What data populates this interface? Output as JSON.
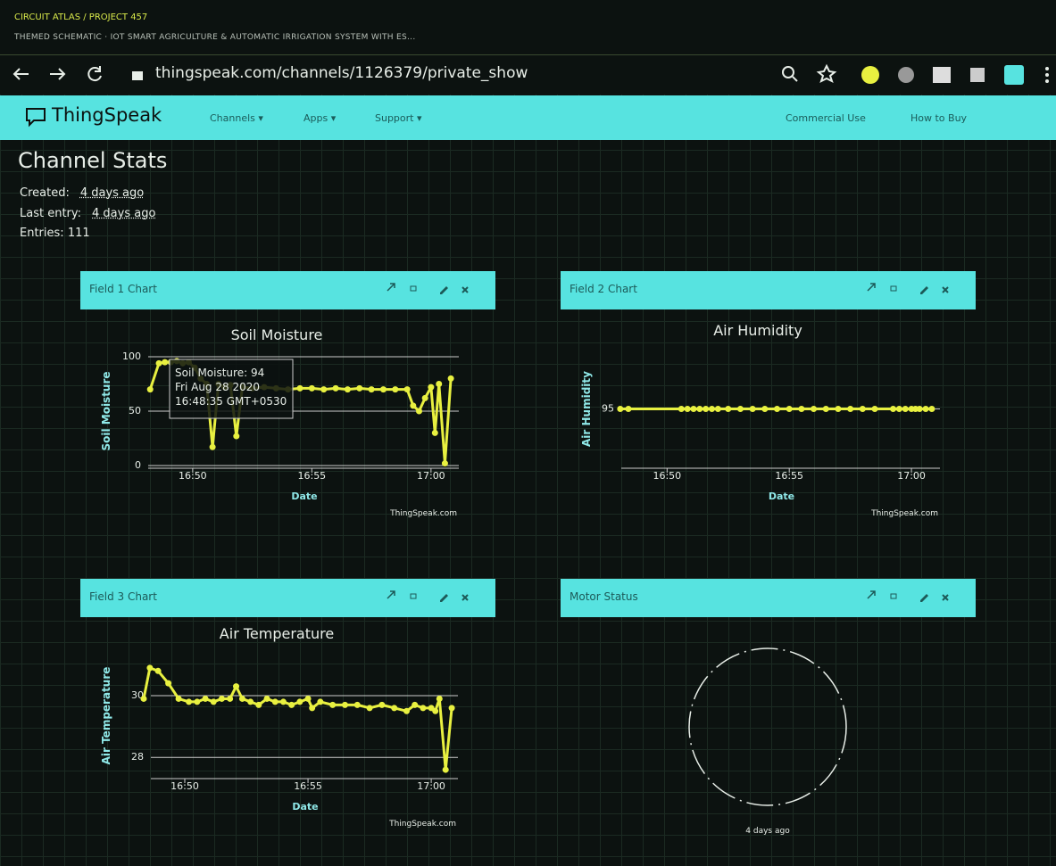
{
  "header": {
    "breadcrumb": "CIRCUIT ATLAS / PROJECT 457",
    "subtitle": "THEMED SCHEMATIC · IOT SMART AGRICULTURE & AUTOMATIC IRRIGATION SYSTEM WITH ES..."
  },
  "browser": {
    "url": "thingspeak.com/channels/1126379/private_show"
  },
  "nav": {
    "brand": "ThingSpeak",
    "menu": [
      "Channels ▾",
      "Apps ▾",
      "Support ▾"
    ],
    "right": [
      "Commercial Use",
      "How to Buy"
    ]
  },
  "stats": {
    "title": "Channel Stats",
    "created_label": "Created:",
    "created": "4 days ago",
    "last_label": "Last entry:",
    "last": "4 days ago",
    "entries_label": "Entries:",
    "entries": 111
  },
  "panels": [
    {
      "header": "Field 1 Chart",
      "chart": {
        "type": "line",
        "title": "Soil Moisture",
        "y_label": "Soil Moisture",
        "x_label": "Date",
        "credit": "ThingSpeak.com",
        "color": "#e8f040",
        "x": [
          "16:48:13",
          "16:48:35",
          "16:48:50",
          "16:49:05",
          "16:49:20",
          "16:49:35",
          "16:49:50",
          "16:50:05",
          "16:50:20",
          "16:50:35",
          "16:50:50",
          "16:51:05",
          "16:51:20",
          "16:51:35",
          "16:51:50",
          "16:52:05",
          "16:52:30",
          "16:53:00",
          "16:53:30",
          "16:54:00",
          "16:54:30",
          "16:55:00",
          "16:55:30",
          "16:56:00",
          "16:56:30",
          "16:57:00",
          "16:57:30",
          "16:58:00",
          "16:58:30",
          "16:59:00",
          "16:59:15",
          "16:59:30",
          "16:59:45",
          "17:00:00",
          "17:00:10",
          "17:00:20",
          "17:00:35",
          "17:00:50"
        ],
        "values": [
          70,
          94,
          95,
          95,
          96,
          94,
          95,
          90,
          80,
          75,
          17,
          75,
          72,
          74,
          27,
          72,
          71,
          72,
          71,
          70,
          71,
          71,
          70,
          71,
          70,
          71,
          70,
          70,
          70,
          70,
          55,
          50,
          62,
          72,
          30,
          75,
          2,
          80
        ],
        "xlim": [
          "16:47:50",
          "17:01:10"
        ],
        "xticks": [
          "16:50",
          "16:55",
          "17:00"
        ],
        "ylim": [
          0,
          100
        ],
        "yticks": [
          0,
          50,
          100
        ],
        "tooltip": [
          "Soil Moisture: 94",
          "Fri Aug 28 2020",
          "16:48:35 GMT+0530"
        ]
      }
    },
    {
      "header": "Field 2 Chart",
      "chart": {
        "type": "line",
        "title": "Air Humidity",
        "y_label": "Air Humidity",
        "x_label": "Date",
        "credit": "ThingSpeak.com",
        "color": "#e8f040",
        "x": [
          "16:48:05",
          "16:48:25",
          "16:50:35",
          "16:50:50",
          "16:51:05",
          "16:51:20",
          "16:51:35",
          "16:51:50",
          "16:52:05",
          "16:52:30",
          "16:53:00",
          "16:53:30",
          "16:54:00",
          "16:54:30",
          "16:55:00",
          "16:55:30",
          "16:56:00",
          "16:56:30",
          "16:57:00",
          "16:57:30",
          "16:58:00",
          "16:58:30",
          "16:59:15",
          "16:59:30",
          "16:59:45",
          "17:00:00",
          "17:00:10",
          "17:00:20",
          "17:00:35",
          "17:00:50"
        ],
        "values": [
          95,
          95,
          95,
          95,
          95,
          95,
          95,
          95,
          95,
          95,
          95,
          95,
          95,
          95,
          95,
          95,
          95,
          95,
          95,
          95,
          95,
          95,
          95,
          95,
          95,
          95,
          95,
          95,
          95,
          95
        ],
        "xlim": [
          "16:47:50",
          "17:01:10"
        ],
        "xticks": [
          "16:50",
          "16:55",
          "17:00"
        ],
        "ylim": [
          90,
          100
        ],
        "yticks": [
          95
        ]
      }
    },
    {
      "header": "Field 3 Chart",
      "chart": {
        "type": "line",
        "title": "Air Temperature",
        "y_label": "Air Temperature",
        "x_label": "Date",
        "credit": "ThingSpeak.com",
        "color": "#e8f040",
        "x": [
          "16:48:20",
          "16:48:35",
          "16:48:55",
          "16:49:20",
          "16:49:45",
          "16:50:10",
          "16:50:30",
          "16:50:50",
          "16:51:10",
          "16:51:30",
          "16:51:50",
          "16:52:05",
          "16:52:20",
          "16:52:40",
          "16:53:00",
          "16:53:20",
          "16:53:40",
          "16:54:00",
          "16:54:20",
          "16:54:40",
          "16:55:00",
          "16:55:10",
          "16:55:30",
          "16:56:00",
          "16:56:30",
          "16:57:00",
          "16:57:30",
          "16:58:00",
          "16:58:30",
          "16:59:00",
          "16:59:20",
          "16:59:40",
          "17:00:00",
          "17:00:10",
          "17:00:20",
          "17:00:35",
          "17:00:50"
        ],
        "values": [
          29.9,
          30.9,
          30.8,
          30.4,
          29.9,
          29.8,
          29.8,
          29.9,
          29.8,
          29.9,
          29.9,
          30.3,
          29.9,
          29.8,
          29.7,
          29.9,
          29.8,
          29.8,
          29.7,
          29.8,
          29.9,
          29.6,
          29.8,
          29.7,
          29.7,
          29.7,
          29.6,
          29.7,
          29.6,
          29.5,
          29.7,
          29.6,
          29.6,
          29.5,
          29.9,
          27.6,
          29.6
        ],
        "xlim": [
          "16:48:20",
          "17:01:05"
        ],
        "xticks": [
          "16:50",
          "16:55",
          "17:00"
        ],
        "ylim": [
          27.4,
          31.3
        ],
        "yticks": [
          28,
          30
        ]
      }
    },
    {
      "header": "Motor Status",
      "lamp": {
        "label": "4 days ago"
      }
    }
  ]
}
